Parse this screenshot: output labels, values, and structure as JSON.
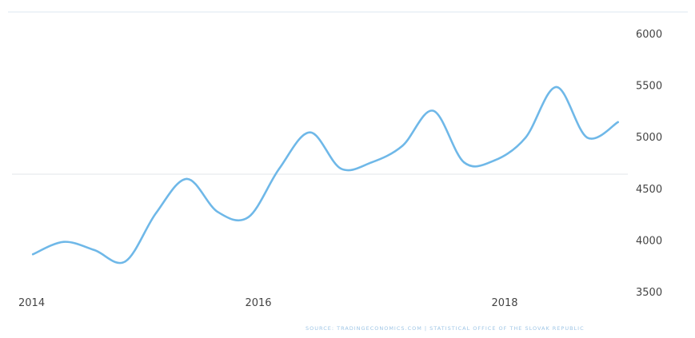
{
  "chart_data": {
    "type": "line",
    "title": "",
    "xlabel": "",
    "ylabel": "",
    "x": [
      2014.17,
      2014.42,
      2014.67,
      2014.92,
      2015.17,
      2015.42,
      2015.67,
      2015.92,
      2016.17,
      2016.42,
      2016.67,
      2016.92,
      2017.17,
      2017.42,
      2017.67,
      2017.92,
      2018.17,
      2018.42,
      2018.67,
      2018.92
    ],
    "series": [
      {
        "values": [
          3870,
          3990,
          3910,
          3800,
          4270,
          4600,
          4280,
          4230,
          4700,
          5050,
          4700,
          4760,
          4920,
          5260,
          4760,
          4780,
          5000,
          5490,
          5000,
          5150
        ]
      }
    ],
    "x_ticks": [
      "2014",
      "2016",
      "2018"
    ],
    "x_tick_values": [
      2014,
      2016,
      2018
    ],
    "y_ticks": [
      "6000",
      "5500",
      "5000",
      "4500",
      "4000",
      "3500"
    ],
    "ylim": [
      3500,
      6000
    ],
    "xlim": [
      2014,
      2019
    ],
    "grid": false,
    "line_color": "#6fb8e8"
  },
  "source_text": "SOURCE: TRADINGECONOMICS.COM | STATISTICAL OFFICE OF THE SLOVAK REPUBLIC"
}
